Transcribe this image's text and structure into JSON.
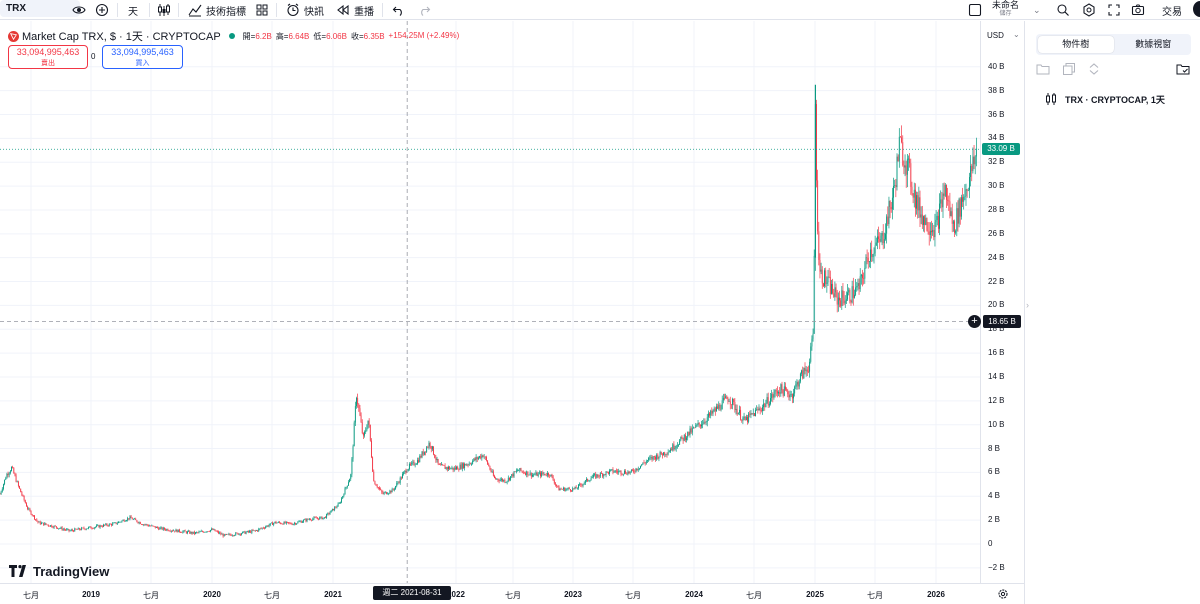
{
  "toolbar": {
    "symbol": "TRX",
    "interval": "天",
    "indicators_label": "技術指標",
    "alert_label": "快訊",
    "replay_label": "重播",
    "layout_name": "未命名",
    "layout_status": "儲存",
    "trade_label": "交易"
  },
  "legend": {
    "title": "Market Cap TRX, $ · 1天 · CRYPTOCAP",
    "open_label": "開=",
    "open": "6.2B",
    "high_label": "高=",
    "high": "6.64B",
    "low_label": "低=",
    "low": "6.06B",
    "close_label": "收=",
    "close": "6.35B",
    "change": "+154.25M (+2.49%)"
  },
  "trade_panel": {
    "sell_price": "33,094,995,463",
    "sell_label": "賣出",
    "spread": "0",
    "buy_price": "33,094,995,463",
    "buy_label": "買入"
  },
  "price_scale": {
    "currency": "USD",
    "ticks": [
      "40 B",
      "38 B",
      "36 B",
      "34 B",
      "32 B",
      "30 B",
      "28 B",
      "26 B",
      "24 B",
      "22 B",
      "20 B",
      "18 B",
      "16 B",
      "14 B",
      "12 B",
      "10 B",
      "8 B",
      "6 B",
      "4 B",
      "2 B",
      "0",
      "−2 B"
    ],
    "last_price": "33.09 B",
    "crosshair_price": "18.65 B"
  },
  "time_scale": {
    "ticks": [
      "七月",
      "2019",
      "七月",
      "2020",
      "七月",
      "2021",
      "2022",
      "七月",
      "2023",
      "七月",
      "2024",
      "七月",
      "2025",
      "七月",
      "2026"
    ],
    "crosshair_date": "週二 2021-08-31"
  },
  "watermark": "TradingView",
  "right_panel": {
    "tabs": [
      "物件樹",
      "數據視窗"
    ],
    "object_item": "TRX · CRYPTOCAP, 1天"
  },
  "colors": {
    "up": "#089981",
    "down": "#f23645",
    "crosshair_label_bg": "#131722",
    "accent": "#2962ff"
  },
  "chart_data": {
    "type": "candlestick",
    "ylim": [
      -3,
      41
    ],
    "yunit": "B USD",
    "x_range": [
      "2018-06",
      "2026-04"
    ],
    "series": [
      {
        "name": "Market Cap TRX",
        "points": [
          {
            "x": "2018-06-01",
            "y": 4.2
          },
          {
            "x": "2018-06-20",
            "y": 5.8
          },
          {
            "x": "2018-07-05",
            "y": 6.4
          },
          {
            "x": "2018-07-25",
            "y": 4.8
          },
          {
            "x": "2018-08-20",
            "y": 3.0
          },
          {
            "x": "2018-09-20",
            "y": 1.8
          },
          {
            "x": "2018-11-01",
            "y": 1.5
          },
          {
            "x": "2018-12-20",
            "y": 1.1
          },
          {
            "x": "2019-02-01",
            "y": 1.3
          },
          {
            "x": "2019-03-20",
            "y": 1.5
          },
          {
            "x": "2019-05-01",
            "y": 1.7
          },
          {
            "x": "2019-06-15",
            "y": 2.2
          },
          {
            "x": "2019-07-20",
            "y": 1.7
          },
          {
            "x": "2019-09-10",
            "y": 1.3
          },
          {
            "x": "2019-11-01",
            "y": 1.1
          },
          {
            "x": "2019-12-20",
            "y": 0.9
          },
          {
            "x": "2020-02-10",
            "y": 1.2
          },
          {
            "x": "2020-03-15",
            "y": 0.7
          },
          {
            "x": "2020-05-01",
            "y": 0.9
          },
          {
            "x": "2020-06-15",
            "y": 1.1
          },
          {
            "x": "2020-08-10",
            "y": 1.8
          },
          {
            "x": "2020-10-01",
            "y": 1.7
          },
          {
            "x": "2020-11-20",
            "y": 2.1
          },
          {
            "x": "2021-01-01",
            "y": 2.2
          },
          {
            "x": "2021-02-15",
            "y": 3.4
          },
          {
            "x": "2021-03-20",
            "y": 5.8
          },
          {
            "x": "2021-04-05",
            "y": 12.6
          },
          {
            "x": "2021-04-25",
            "y": 8.8
          },
          {
            "x": "2021-05-10",
            "y": 10.5
          },
          {
            "x": "2021-05-25",
            "y": 5.3
          },
          {
            "x": "2021-06-20",
            "y": 4.2
          },
          {
            "x": "2021-07-20",
            "y": 4.5
          },
          {
            "x": "2021-08-31",
            "y": 6.35
          },
          {
            "x": "2021-10-01",
            "y": 7.0
          },
          {
            "x": "2021-11-05",
            "y": 8.5
          },
          {
            "x": "2021-12-01",
            "y": 6.5
          },
          {
            "x": "2022-01-15",
            "y": 6.3
          },
          {
            "x": "2022-03-01",
            "y": 6.8
          },
          {
            "x": "2022-04-10",
            "y": 7.5
          },
          {
            "x": "2022-05-12",
            "y": 5.5
          },
          {
            "x": "2022-06-15",
            "y": 5.3
          },
          {
            "x": "2022-07-20",
            "y": 6.2
          },
          {
            "x": "2022-09-01",
            "y": 5.8
          },
          {
            "x": "2022-10-20",
            "y": 5.9
          },
          {
            "x": "2022-11-15",
            "y": 4.6
          },
          {
            "x": "2023-01-01",
            "y": 4.6
          },
          {
            "x": "2023-02-20",
            "y": 5.6
          },
          {
            "x": "2023-04-20",
            "y": 6.1
          },
          {
            "x": "2023-06-15",
            "y": 6.0
          },
          {
            "x": "2023-08-01",
            "y": 7.0
          },
          {
            "x": "2023-10-01",
            "y": 7.8
          },
          {
            "x": "2023-12-01",
            "y": 9.3
          },
          {
            "x": "2024-02-01",
            "y": 10.8
          },
          {
            "x": "2024-03-25",
            "y": 12.3
          },
          {
            "x": "2024-05-10",
            "y": 10.3
          },
          {
            "x": "2024-07-01",
            "y": 11.5
          },
          {
            "x": "2024-08-20",
            "y": 13.0
          },
          {
            "x": "2024-09-25",
            "y": 12.5
          },
          {
            "x": "2024-10-20",
            "y": 14.0
          },
          {
            "x": "2024-11-15",
            "y": 15.0
          },
          {
            "x": "2024-11-28",
            "y": 18.0
          },
          {
            "x": "2024-12-03",
            "y": 38.5
          },
          {
            "x": "2024-12-06",
            "y": 30.0
          },
          {
            "x": "2024-12-15",
            "y": 22.8
          },
          {
            "x": "2025-01-05",
            "y": 22.0
          },
          {
            "x": "2025-02-05",
            "y": 20.5
          },
          {
            "x": "2025-03-10",
            "y": 20.8
          },
          {
            "x": "2025-04-10",
            "y": 21.5
          },
          {
            "x": "2025-05-10",
            "y": 24.5
          },
          {
            "x": "2025-06-15",
            "y": 25.5
          },
          {
            "x": "2025-07-20",
            "y": 29.5
          },
          {
            "x": "2025-08-05",
            "y": 33.5
          },
          {
            "x": "2025-08-25",
            "y": 32.0
          },
          {
            "x": "2025-09-25",
            "y": 28.5
          },
          {
            "x": "2025-10-20",
            "y": 27.0
          },
          {
            "x": "2025-11-20",
            "y": 26.5
          },
          {
            "x": "2025-12-15",
            "y": 29.8
          },
          {
            "x": "2026-01-10",
            "y": 26.5
          },
          {
            "x": "2026-02-05",
            "y": 29.0
          },
          {
            "x": "2026-03-01",
            "y": 31.0
          },
          {
            "x": "2026-03-20",
            "y": 33.1
          }
        ]
      }
    ]
  }
}
